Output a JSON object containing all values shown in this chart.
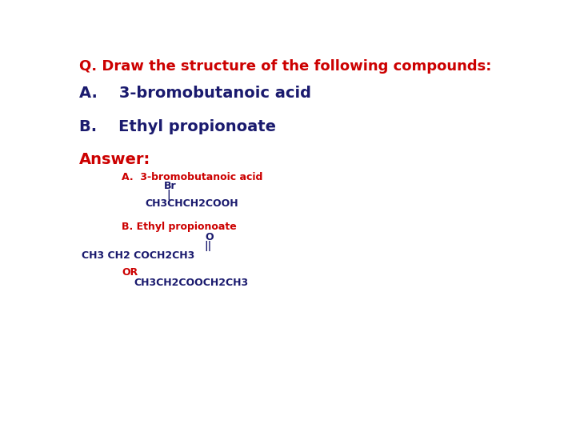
{
  "bg_color": "#ffffff",
  "title_text": "Q. Draw the structure of the following compounds:",
  "title_color": "#cc0000",
  "question_a": "A.    3-bromobutanoic acid",
  "question_b": "B.    Ethyl propionoate",
  "question_color": "#1a1a6e",
  "answer_label": "Answer:",
  "answer_color": "#cc0000",
  "ans_a_label": "A.  3-bromobutanoic acid",
  "ans_a_color": "#cc0000",
  "br_label": "Br",
  "br_color": "#1a1a6e",
  "line_a": "|",
  "line_a_color": "#1a1a6e",
  "formula_a": "CH3CHCH2COOH",
  "formula_a_color": "#1a1a6e",
  "ans_b_label": "B. Ethyl propionoate",
  "ans_b_color": "#cc0000",
  "o_label": "O",
  "o_color": "#1a1a6e",
  "dblline": "||",
  "dblline_color": "#1a1a6e",
  "formula_b": "CH3 CH2 COCH2CH3",
  "formula_b_color": "#1a1a6e",
  "or_label": "OR",
  "or_color": "#cc0000",
  "formula_c": "CH3CH2COOCH2CH3",
  "formula_c_color": "#1a1a6e",
  "font_size_title": 13,
  "font_size_question": 14,
  "font_size_answer_label": 14,
  "font_size_ans_label": 9,
  "font_size_formula": 9
}
